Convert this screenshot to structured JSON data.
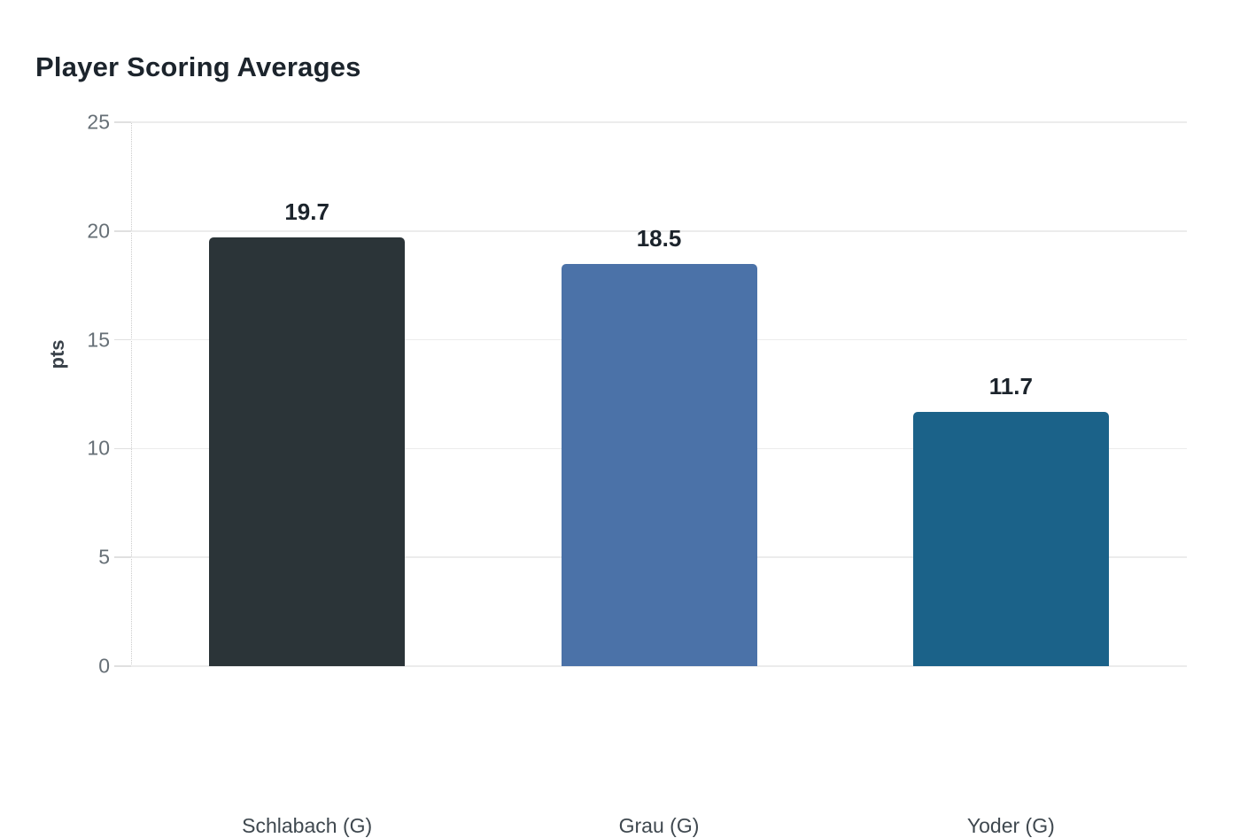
{
  "header": {
    "title": "Player Scoring Averages"
  },
  "chart_data": {
    "type": "bar",
    "title": "Player Scoring Averages",
    "xlabel": "",
    "ylabel": "pts",
    "categories": [
      "Schlabach (G)",
      "Grau (G)",
      "Yoder (G)"
    ],
    "values": [
      19.7,
      18.5,
      11.7
    ],
    "value_labels": [
      "19.7",
      "18.5",
      "11.7"
    ],
    "ylim": [
      0,
      25
    ],
    "yticks": [
      0,
      5,
      10,
      15,
      20,
      25
    ],
    "grid": true,
    "legend": "none",
    "bar_colors": [
      "#2b3438",
      "#4b72a8",
      "#1b6289"
    ]
  },
  "theme": {
    "background": "#ffffff",
    "grid_color": "#ececec",
    "axis_dotted_line_color": "#cbcbcb",
    "tick_mark_color": "#e0e0e0",
    "tick_label_color": "#666f76",
    "category_label_color": "#3f484f",
    "value_label_color": "#1c242c",
    "title_color": "#1c242c",
    "y_axis_label_color": "#3a424a"
  }
}
